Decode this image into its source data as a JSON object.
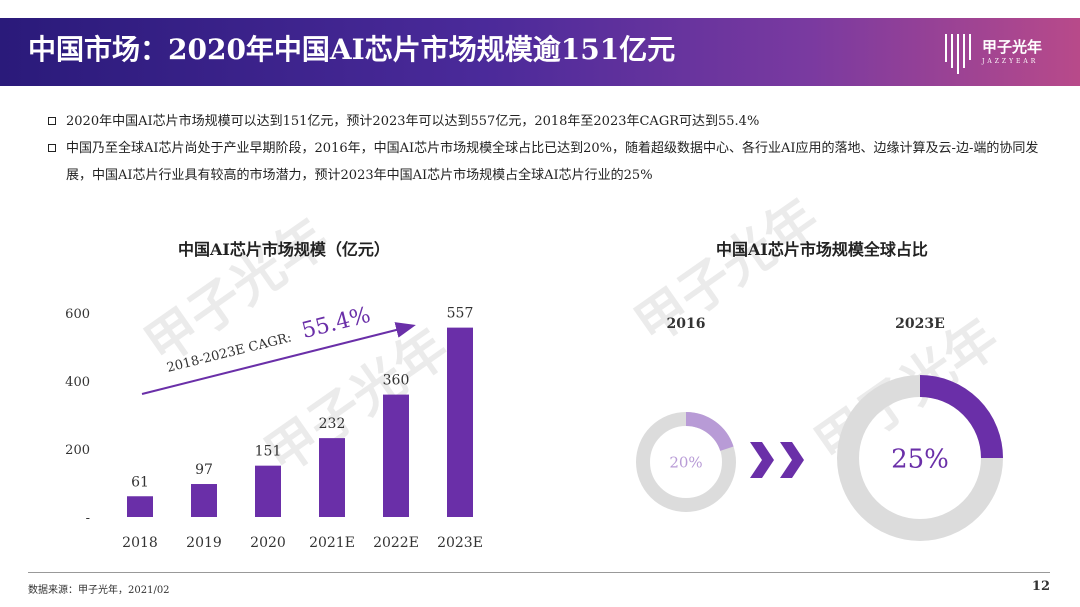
{
  "header": {
    "title": "中国市场：2020年中国AI芯片市场规模逾151亿元",
    "logo_text": "甲子光年",
    "logo_sub": "JAZZYEAR"
  },
  "bullets": [
    "2020年中国AI芯片市场规模可以达到151亿元，预计2023年可以达到557亿元，2018年至2023年CAGR可达到55.4%",
    "中国乃至全球AI芯片尚处于产业早期阶段，2016年，中国AI芯片市场规模全球占比已达到20%，随着超级数据中心、各行业AI应用的落地、边缘计算及云-边-端的协同发展，中国AI芯片行业具有较高的市场潜力，预计2023年中国AI芯片市场规模占全球AI芯片行业的25%"
  ],
  "watermark": "甲子光年",
  "chart_data": [
    {
      "type": "bar",
      "title": "中国AI芯片市场规模（亿元）",
      "categories": [
        "2018",
        "2019",
        "2020",
        "2021E",
        "2022E",
        "2023E"
      ],
      "values": [
        61,
        97,
        151,
        232,
        360,
        557
      ],
      "yticks": [
        "-",
        "200",
        "400",
        "600"
      ],
      "ylim": [
        0,
        600
      ],
      "annotation_label": "2018-2023E CAGR:",
      "annotation_value": "55.4%",
      "bar_color": "#6a2fa8"
    },
    {
      "type": "pie",
      "title": "中国AI芯片市场规模全球占比",
      "series": [
        {
          "name": "2016",
          "value": 20,
          "label": "20%"
        },
        {
          "name": "2023E",
          "value": 25,
          "label": "25%"
        }
      ],
      "colors": {
        "highlight_2016": "#b89bd6",
        "highlight_2023": "#6a2fa8",
        "rest": "#dcdcdc"
      }
    }
  ],
  "footer": {
    "source": "数据来源：甲子光年，2021/02",
    "page": "12"
  }
}
